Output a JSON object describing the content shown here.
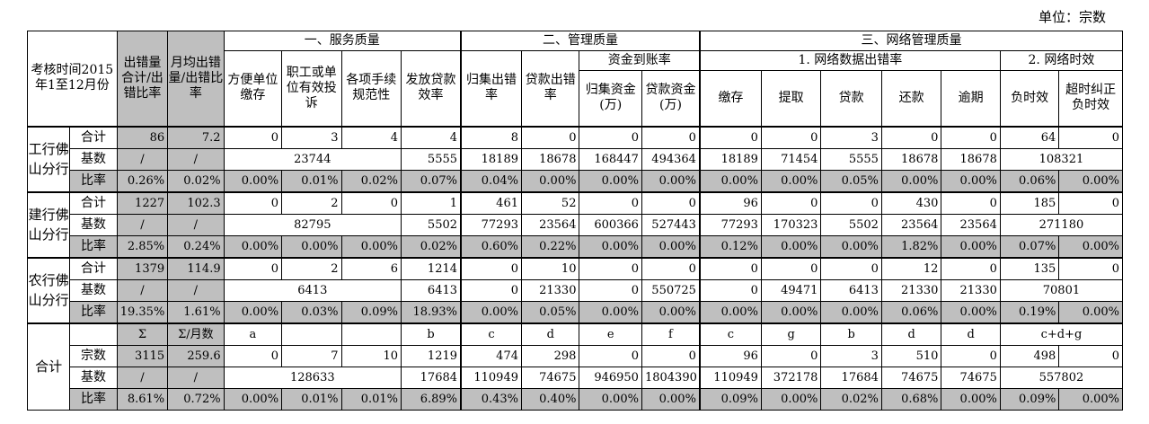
{
  "unit_label": "单位：宗数",
  "headers": {
    "period": "考核时间2015年1至12月份",
    "total_errors": "出错量合计/出错比率",
    "monthly_errors": "月均出错量/出错比率",
    "section1": "一、服务质量",
    "section2": "二、管理质量",
    "section3": "三、网络管理质量",
    "fund_arrival": "资金到账率",
    "net_data_error": "1. 网络数据出错率",
    "net_timeliness": "2. 网络时效",
    "cols": [
      "方便单位缴存",
      "职工或单位有效投诉",
      "各项手续规范性",
      "发放贷款效率",
      "归集出错率",
      "贷款出错率",
      "归集资金(万)",
      "贷款资金(万)",
      "缴存",
      "提取",
      "贷款",
      "还款",
      "逾期",
      "负时效",
      "超时纠正负时效"
    ]
  },
  "banks": [
    {
      "name": "工行佛山分行",
      "rows": [
        {
          "label": "合计",
          "total": "86",
          "monthly": "7.2",
          "v": [
            "0",
            "3",
            "4",
            "4",
            "8",
            "0",
            "0",
            "0",
            "0",
            "0",
            "3",
            "0",
            "0",
            "64",
            "0"
          ]
        },
        {
          "label": "基数",
          "total": "/",
          "monthly": "/",
          "base_service": "23744",
          "base_loan": "5555",
          "v2": [
            "18189",
            "18678",
            "168447",
            "494364",
            "18189",
            "71454",
            "5555",
            "18678",
            "18678"
          ],
          "base_net": "108321"
        },
        {
          "label": "比率",
          "total": "0.26%",
          "monthly": "0.02%",
          "v": [
            "0.00%",
            "0.01%",
            "0.02%",
            "0.07%",
            "0.04%",
            "0.00%",
            "0.00%",
            "0.00%",
            "0.00%",
            "0.00%",
            "0.05%",
            "0.00%",
            "0.00%",
            "0.06%",
            "0.00%"
          ]
        }
      ]
    },
    {
      "name": "建行佛山分行",
      "rows": [
        {
          "label": "合计",
          "total": "1227",
          "monthly": "102.3",
          "v": [
            "0",
            "2",
            "0",
            "1",
            "461",
            "52",
            "0",
            "0",
            "96",
            "0",
            "0",
            "430",
            "0",
            "185",
            "0"
          ]
        },
        {
          "label": "基数",
          "total": "/",
          "monthly": "/",
          "base_service": "82795",
          "base_loan": "5502",
          "v2": [
            "77293",
            "23564",
            "600366",
            "527443",
            "77293",
            "170323",
            "5502",
            "23564",
            "23564"
          ],
          "base_net": "271180"
        },
        {
          "label": "比率",
          "total": "2.85%",
          "monthly": "0.24%",
          "v": [
            "0.00%",
            "0.00%",
            "0.00%",
            "0.02%",
            "0.60%",
            "0.22%",
            "0.00%",
            "0.00%",
            "0.12%",
            "0.00%",
            "0.00%",
            "1.82%",
            "0.00%",
            "0.07%",
            "0.00%"
          ]
        }
      ]
    },
    {
      "name": "农行佛山分行",
      "rows": [
        {
          "label": "合计",
          "total": "1379",
          "monthly": "114.9",
          "v": [
            "0",
            "2",
            "6",
            "1214",
            "0",
            "10",
            "0",
            "0",
            "0",
            "0",
            "0",
            "12",
            "0",
            "135",
            "0"
          ]
        },
        {
          "label": "基数",
          "total": "/",
          "monthly": "/",
          "base_service": "6413",
          "base_loan": "6413",
          "v2": [
            "0",
            "21330",
            "0",
            "550725",
            "0",
            "49471",
            "6413",
            "21330",
            "21330"
          ],
          "base_net": "70801"
        },
        {
          "label": "比率",
          "total": "19.35%",
          "monthly": "1.61%",
          "v": [
            "0.00%",
            "0.03%",
            "0.09%",
            "18.93%",
            "0.00%",
            "0.05%",
            "0.00%",
            "0.00%",
            "0.00%",
            "0.00%",
            "0.00%",
            "0.06%",
            "0.00%",
            "0.19%",
            "0.00%"
          ]
        }
      ]
    }
  ],
  "summary": {
    "name": "合计",
    "formula_row": {
      "total": "Σ",
      "monthly": "Σ/月数",
      "v": [
        "a",
        "",
        "",
        "b",
        "c",
        "d",
        "e",
        "f",
        "c",
        "g",
        "b",
        "d",
        "d"
      ],
      "net": "c+d+g"
    },
    "rows": [
      {
        "label": "宗数",
        "total": "3115",
        "monthly": "259.6",
        "v": [
          "0",
          "7",
          "10",
          "1219",
          "474",
          "298",
          "0",
          "0",
          "96",
          "0",
          "3",
          "510",
          "0",
          "498",
          "0"
        ]
      },
      {
        "label": "基数",
        "total": "/",
        "monthly": "/",
        "base_service": "128633",
        "base_loan": "17684",
        "v2": [
          "110949",
          "74675",
          "946950",
          "1804390",
          "110949",
          "372178",
          "17684",
          "74675",
          "74675"
        ],
        "base_net": "557802"
      },
      {
        "label": "比率",
        "total": "8.61%",
        "monthly": "0.72%",
        "v": [
          "0.00%",
          "0.01%",
          "0.01%",
          "6.89%",
          "0.43%",
          "0.40%",
          "0.00%",
          "0.00%",
          "0.09%",
          "0.00%",
          "0.02%",
          "0.68%",
          "0.00%",
          "0.09%",
          "0.00%"
        ]
      }
    ]
  }
}
